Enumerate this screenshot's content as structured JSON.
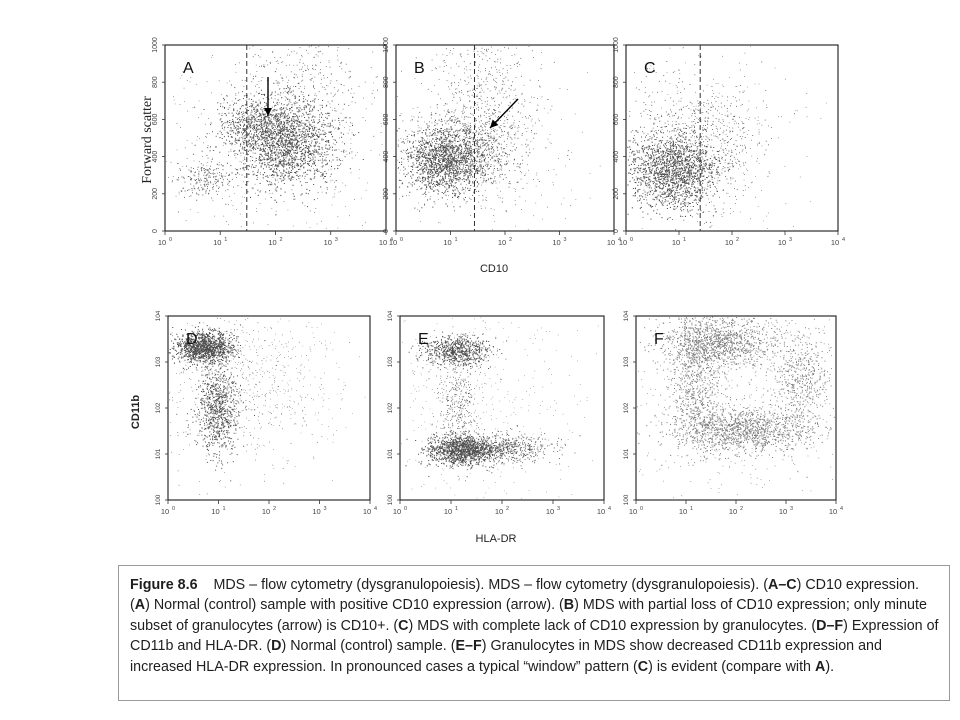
{
  "figure": {
    "top_row": {
      "y_axis_title": "Forward scatter",
      "x_axis_title": "CD10",
      "y_ticks": [
        "0",
        "200",
        "400",
        "600",
        "800",
        "1000"
      ],
      "panels": [
        {
          "letter": "A",
          "description": "Normal control: CD10+ granulocytes (arrow)"
        },
        {
          "letter": "B",
          "description": "MDS partial loss of CD10 (arrow)"
        },
        {
          "letter": "C",
          "description": "MDS complete lack of CD10"
        }
      ]
    },
    "bottom_row": {
      "y_axis_title": "CD11b",
      "x_axis_title": "HLA-DR",
      "panels": [
        {
          "letter": "D"
        },
        {
          "letter": "E"
        },
        {
          "letter": "F"
        }
      ]
    },
    "log_ticks": {
      "base": "10",
      "exponents": [
        "0",
        "1",
        "2",
        "3",
        "4"
      ]
    }
  },
  "caption": {
    "label": "Figure 8.6",
    "lead": "MDS – flow cytometry (dysgranulopoiesis). MDS – flow cytometry (dysgranulopoiesis).",
    "parts": [
      {
        "text": " ("
      },
      {
        "text": "A–C",
        "bold": true
      },
      {
        "text": ") CD10 expression. ("
      },
      {
        "text": "A",
        "bold": true
      },
      {
        "text": ") Normal (control) sample with positive CD10 expression (arrow). ("
      },
      {
        "text": "B",
        "bold": true
      },
      {
        "text": ") MDS with partial loss of CD10 expression; only minute subset of granulocytes (arrow) is CD10+. ("
      },
      {
        "text": "C",
        "bold": true
      },
      {
        "text": ") MDS with complete lack of CD10 expression by granulocytes. ("
      },
      {
        "text": "D–F",
        "bold": true
      },
      {
        "text": ") Expression of CD11b and HLA-DR. ("
      },
      {
        "text": "D",
        "bold": true
      },
      {
        "text": ") Normal (control) sample. ("
      },
      {
        "text": "E–F",
        "bold": true
      },
      {
        "text": ") Granulocytes in MDS show decreased CD11b expression and increased HLA-DR expression. In pronounced cases a typical “window” pattern ("
      },
      {
        "text": "C",
        "bold": true
      },
      {
        "text": ") is evident (compare with "
      },
      {
        "text": "A",
        "bold": true
      },
      {
        "text": ")."
      }
    ]
  }
}
